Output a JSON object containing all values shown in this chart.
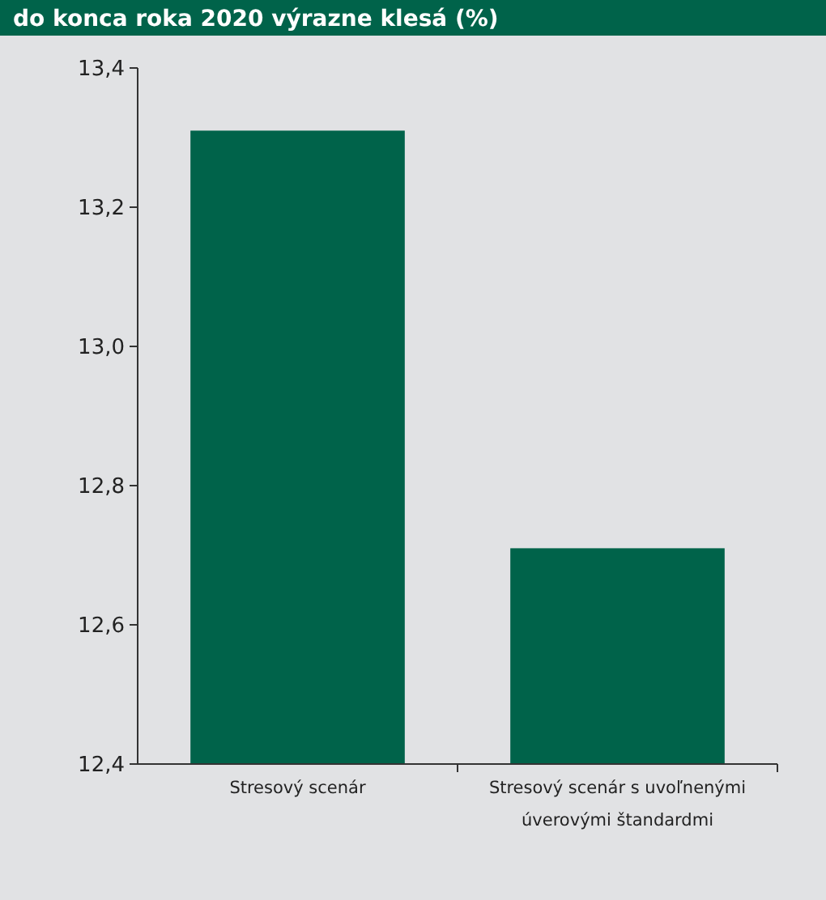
{
  "chart_data": {
    "type": "bar",
    "title": "do konca roka 2020 výrazne klesá (%)",
    "categories": [
      "Stresový scenár",
      "Stresový scenár s uvoľnenými úverovými štandardmi"
    ],
    "values": [
      13.31,
      12.71
    ],
    "color": "#00634a",
    "ylim": [
      12.4,
      13.4
    ],
    "yticks": [
      {
        "value": 12.4,
        "label": "12,4"
      },
      {
        "value": 12.6,
        "label": "12,6"
      },
      {
        "value": 12.8,
        "label": "12,8"
      },
      {
        "value": 13.0,
        "label": "13,0"
      },
      {
        "value": 13.2,
        "label": "13,2"
      },
      {
        "value": 13.4,
        "label": "13,4"
      }
    ],
    "grid": false
  }
}
